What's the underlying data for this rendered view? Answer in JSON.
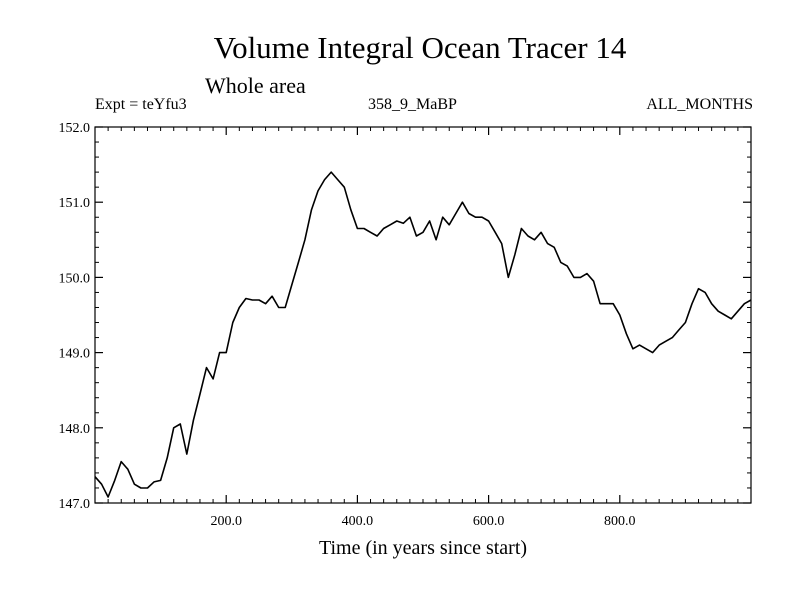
{
  "chart_data": {
    "type": "line",
    "title": "Volume Integral Ocean Tracer 14",
    "subtitle": "Whole area",
    "experiment": "Expt = teYfu3",
    "run_label": "358_9_MaBP",
    "months_label": "ALL_MONTHS",
    "xlabel": "Time (in years since start)",
    "ylabel": "",
    "xlim": [
      0,
      1000
    ],
    "ylim": [
      147.0,
      152.0
    ],
    "x_ticks": [
      200.0,
      400.0,
      600.0,
      800.0
    ],
    "x_tick_labels": [
      "200.0",
      "400.0",
      "600.0",
      "800.0"
    ],
    "y_ticks": [
      147.0,
      148.0,
      149.0,
      150.0,
      151.0,
      152.0
    ],
    "y_tick_labels": [
      "147.0",
      "148.0",
      "149.0",
      "150.0",
      "151.0",
      "152.0"
    ],
    "grid": false,
    "line_color": "#000000",
    "series": [
      {
        "x": [
          0,
          10,
          20,
          30,
          40,
          50,
          60,
          70,
          80,
          90,
          100,
          110,
          120,
          130,
          140,
          150,
          160,
          170,
          180,
          190,
          200,
          210,
          220,
          230,
          240,
          250,
          260,
          270,
          280,
          290,
          300,
          310,
          320,
          330,
          340,
          350,
          360,
          370,
          380,
          390,
          400,
          410,
          420,
          430,
          440,
          450,
          460,
          470,
          480,
          490,
          500,
          510,
          520,
          530,
          540,
          550,
          560,
          570,
          580,
          590,
          600,
          610,
          620,
          630,
          640,
          650,
          660,
          670,
          680,
          690,
          700,
          710,
          720,
          730,
          740,
          750,
          760,
          770,
          780,
          790,
          800,
          810,
          820,
          830,
          840,
          850,
          860,
          870,
          880,
          890,
          900,
          910,
          920,
          930,
          940,
          950,
          960,
          970,
          980,
          990,
          1000
        ],
        "values": [
          147.35,
          147.25,
          147.08,
          147.3,
          147.55,
          147.45,
          147.25,
          147.2,
          147.2,
          147.28,
          147.3,
          147.6,
          148.0,
          148.05,
          147.65,
          148.1,
          148.45,
          148.8,
          148.65,
          149.0,
          149.0,
          149.4,
          149.6,
          149.72,
          149.7,
          149.7,
          149.65,
          149.75,
          149.6,
          149.6,
          149.9,
          150.2,
          150.5,
          150.9,
          151.15,
          151.3,
          151.4,
          151.3,
          151.2,
          150.9,
          150.65,
          150.65,
          150.6,
          150.55,
          150.65,
          150.7,
          150.75,
          150.72,
          150.8,
          150.55,
          150.6,
          150.75,
          150.5,
          150.8,
          150.7,
          150.85,
          151.0,
          150.85,
          150.8,
          150.8,
          150.75,
          150.6,
          150.45,
          150.0,
          150.3,
          150.65,
          150.55,
          150.5,
          150.6,
          150.45,
          150.4,
          150.2,
          150.15,
          150.0,
          150.0,
          150.05,
          149.95,
          149.65,
          149.65,
          149.65,
          149.5,
          149.25,
          149.05,
          149.1,
          149.05,
          149.0,
          149.1,
          149.15,
          149.2,
          149.3,
          149.4,
          149.65,
          149.85,
          149.8,
          149.65,
          149.55,
          149.5,
          149.45,
          149.55,
          149.65,
          149.7
        ]
      }
    ]
  }
}
